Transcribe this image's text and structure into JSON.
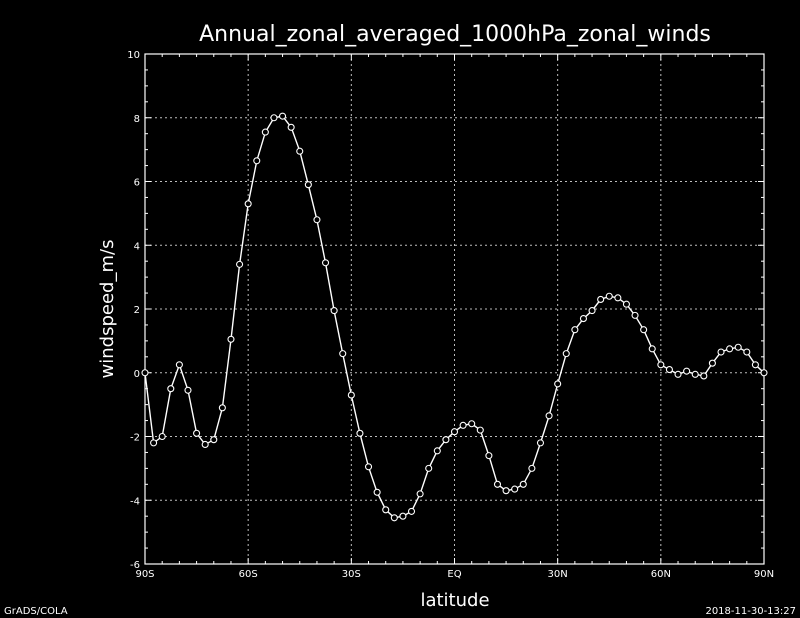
{
  "chart_data": {
    "type": "line",
    "title": "Annual_zonal_averaged_1000hPa_zonal_winds",
    "xlabel": "latitude",
    "ylabel": "windspeed_m/s",
    "xlim": [
      -90,
      90
    ],
    "ylim": [
      -6,
      10
    ],
    "grid": true,
    "x_ticks": [
      -90,
      -60,
      -30,
      0,
      30,
      60,
      90
    ],
    "x_tick_labels": [
      "90S",
      "60S",
      "30S",
      "EQ",
      "30N",
      "60N",
      "90N"
    ],
    "y_ticks": [
      -6,
      -4,
      -2,
      0,
      2,
      4,
      6,
      8,
      10
    ],
    "y_tick_labels": [
      "-6",
      "-4",
      "-2",
      "0",
      "2",
      "4",
      "6",
      "8",
      "10"
    ],
    "x": [
      -90,
      -87.5,
      -85,
      -82.5,
      -80,
      -77.5,
      -75,
      -72.5,
      -70,
      -67.5,
      -65,
      -62.5,
      -60,
      -57.5,
      -55,
      -52.5,
      -50,
      -47.5,
      -45,
      -42.5,
      -40,
      -37.5,
      -35,
      -32.5,
      -30,
      -27.5,
      -25,
      -22.5,
      -20,
      -17.5,
      -15,
      -12.5,
      -10,
      -7.5,
      -5,
      -2.5,
      0,
      2.5,
      5,
      7.5,
      10,
      12.5,
      15,
      17.5,
      20,
      22.5,
      25,
      27.5,
      30,
      32.5,
      35,
      37.5,
      40,
      42.5,
      45,
      47.5,
      50,
      52.5,
      55,
      57.5,
      60,
      62.5,
      65,
      67.5,
      70,
      72.5,
      75,
      77.5,
      80,
      82.5,
      85,
      87.5,
      90
    ],
    "series": [
      {
        "values": [
          0,
          -2.2,
          -2.0,
          -0.5,
          0.25,
          -0.55,
          -1.9,
          -2.25,
          -2.1,
          -1.1,
          1.05,
          3.4,
          5.3,
          6.65,
          7.55,
          8.0,
          8.05,
          7.7,
          6.95,
          5.9,
          4.8,
          3.45,
          1.95,
          0.6,
          -0.7,
          -1.9,
          -2.95,
          -3.75,
          -4.3,
          -4.55,
          -4.5,
          -4.35,
          -3.8,
          -3.0,
          -2.45,
          -2.1,
          -1.85,
          -1.65,
          -1.6,
          -1.8,
          -2.6,
          -3.5,
          -3.7,
          -3.65,
          -3.5,
          -3.0,
          -2.2,
          -1.35,
          -0.35,
          0.6,
          1.35,
          1.7,
          1.95,
          2.3,
          2.4,
          2.35,
          2.15,
          1.8,
          1.35,
          0.75,
          0.25,
          0.1,
          -0.05,
          0.05,
          -0.05,
          -0.1,
          0.3,
          0.65,
          0.75,
          0.8,
          0.65,
          0.25,
          0
        ]
      }
    ]
  },
  "footer": {
    "left": "GrADS/COLA",
    "right": "2018-11-30-13:27"
  }
}
